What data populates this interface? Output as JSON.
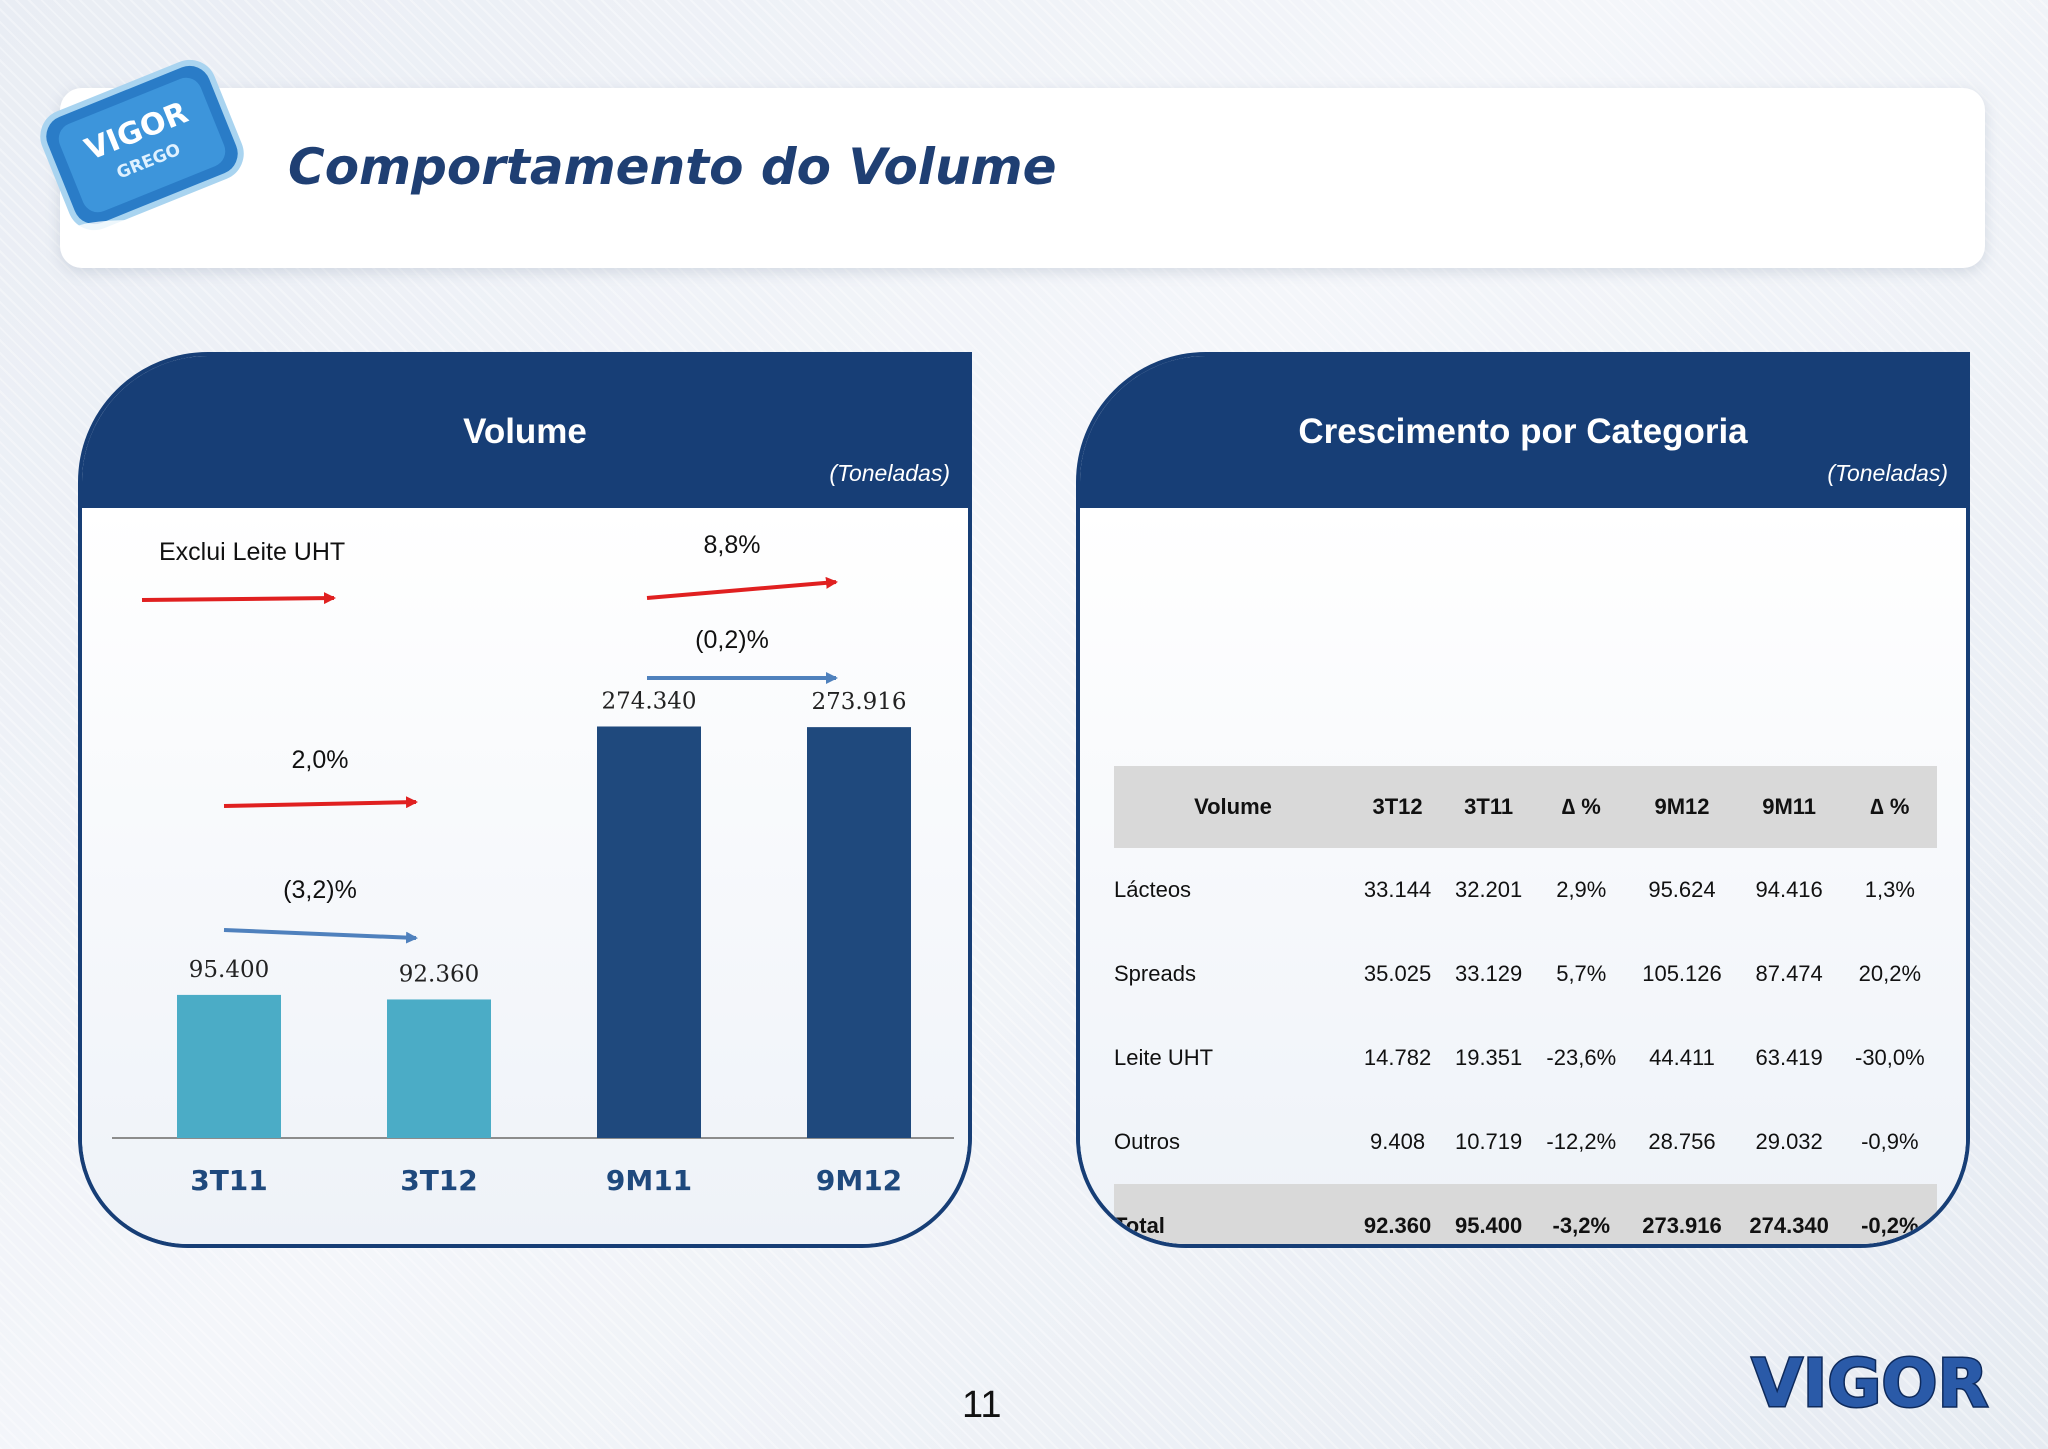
{
  "header": {
    "title": "Comportamento do Volume"
  },
  "product_logo": {
    "text": "VIGOR",
    "subtext": "GREGO"
  },
  "volume_panel": {
    "title": "Volume",
    "unit": "(Toneladas)",
    "legend_text": "Exclui Leite UHT",
    "annotations": {
      "q_red": "2,0%",
      "q_blue": "(3,2)%",
      "nine_red": "8,8%",
      "nine_blue": "(0,2)%"
    }
  },
  "chart_data": {
    "type": "bar",
    "categories": [
      "3T11",
      "3T12",
      "9M11",
      "9M12"
    ],
    "values": [
      95400,
      92360,
      274340,
      273916
    ],
    "value_labels": [
      "95.400",
      "92.360",
      "274.340",
      "273.916"
    ],
    "title": "Volume",
    "unit": "(Toneladas)",
    "ylim": [
      0,
      420000
    ],
    "grid": false,
    "colors": [
      "#4bacc6",
      "#4bacc6",
      "#1f497d",
      "#1f497d"
    ]
  },
  "category_panel": {
    "title": "Crescimento por Categoria",
    "unit": "(Toneladas)",
    "table": {
      "headers": [
        "Volume",
        "3T12",
        "3T11",
        "∆ %",
        "9M12",
        "9M11",
        "∆ %"
      ],
      "rows": [
        [
          "Lácteos",
          "33.144",
          "32.201",
          "2,9%",
          "95.624",
          "94.416",
          "1,3%"
        ],
        [
          "Spreads",
          "35.025",
          "33.129",
          "5,7%",
          "105.126",
          "87.474",
          "20,2%"
        ],
        [
          "Leite UHT",
          "14.782",
          "19.351",
          "-23,6%",
          "44.411",
          "63.419",
          "-30,0%"
        ],
        [
          "Outros",
          "9.408",
          "10.719",
          "-12,2%",
          "28.756",
          "29.032",
          "-0,9%"
        ],
        [
          "Total",
          "92.360",
          "95.400",
          "-3,2%",
          "273.916",
          "274.340",
          "-0,2%"
        ]
      ]
    }
  },
  "footer": {
    "page_number": "11",
    "brand": "VIGOR"
  },
  "colors": {
    "navy": "#173e76",
    "title_blue": "#1f3f73",
    "bar_light": "#4bacc6",
    "bar_dark": "#1f497d",
    "arrow_red": "#e02020",
    "arrow_blue": "#4f81bd"
  }
}
